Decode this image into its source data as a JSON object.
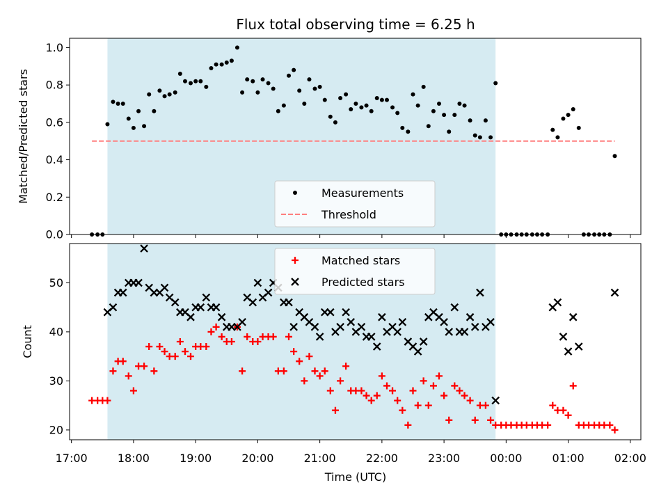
{
  "chart_data": {
    "title": "Flux total observing time = 6.25 h",
    "xlabel": "Time (UTC)",
    "x_tick_labels": [
      "17:00",
      "18:00",
      "19:00",
      "20:00",
      "21:00",
      "22:00",
      "23:00",
      "00:00",
      "01:00",
      "02:00"
    ],
    "x_range_hours": [
      16.97,
      26.17
    ],
    "shaded_span_hours": [
      17.58,
      23.83
    ],
    "shade_color": "#add8e6",
    "panels": [
      {
        "type": "scatter",
        "ylabel": "Matched/Predicted stars",
        "ylim": [
          0,
          1.05
        ],
        "y_ticks": [
          "0.0",
          "0.2",
          "0.4",
          "0.6",
          "0.8",
          "1.0"
        ],
        "legend": {
          "position": "lower-center",
          "entries": [
            "Measurements",
            "Threshold"
          ]
        },
        "series": [
          {
            "name": "Measurements",
            "marker": "dot",
            "color": "#000000",
            "x": [
              17.33,
              17.42,
              17.5,
              17.58,
              17.67,
              17.75,
              17.83,
              17.92,
              18.0,
              18.08,
              18.17,
              18.25,
              18.33,
              18.42,
              18.5,
              18.58,
              18.67,
              18.75,
              18.83,
              18.92,
              19.0,
              19.08,
              19.17,
              19.25,
              19.33,
              19.42,
              19.5,
              19.58,
              19.67,
              19.75,
              19.83,
              19.92,
              20.0,
              20.08,
              20.17,
              20.25,
              20.33,
              20.42,
              20.5,
              20.58,
              20.67,
              20.75,
              20.83,
              20.92,
              21.0,
              21.08,
              21.17,
              21.25,
              21.33,
              21.42,
              21.5,
              21.58,
              21.67,
              21.75,
              21.83,
              21.92,
              22.0,
              22.08,
              22.17,
              22.25,
              22.33,
              22.42,
              22.5,
              22.58,
              22.67,
              22.75,
              22.83,
              22.92,
              23.0,
              23.08,
              23.17,
              23.25,
              23.33,
              23.42,
              23.5,
              23.58,
              23.67,
              23.75,
              23.83,
              23.92,
              24.0,
              24.08,
              24.17,
              24.25,
              24.33,
              24.42,
              24.5,
              24.58,
              24.67,
              24.75,
              24.83,
              24.92,
              25.0,
              25.08,
              25.17,
              25.25,
              25.33,
              25.42,
              25.5,
              25.58,
              25.67,
              25.75
            ],
            "y": [
              0,
              0,
              0,
              0.59,
              0.71,
              0.7,
              0.7,
              0.62,
              0.57,
              0.66,
              0.58,
              0.75,
              0.66,
              0.77,
              0.74,
              0.75,
              0.76,
              0.86,
              0.82,
              0.81,
              0.82,
              0.82,
              0.79,
              0.89,
              0.91,
              0.91,
              0.92,
              0.93,
              1.0,
              0.76,
              0.83,
              0.82,
              0.76,
              0.83,
              0.81,
              0.78,
              0.66,
              0.69,
              0.85,
              0.88,
              0.77,
              0.7,
              0.83,
              0.78,
              0.79,
              0.72,
              0.63,
              0.6,
              0.73,
              0.75,
              0.67,
              0.7,
              0.68,
              0.69,
              0.66,
              0.73,
              0.72,
              0.72,
              0.68,
              0.65,
              0.57,
              0.55,
              0.75,
              0.69,
              0.79,
              0.58,
              0.66,
              0.7,
              0.64,
              0.55,
              0.64,
              0.7,
              0.69,
              0.61,
              0.53,
              0.52,
              0.61,
              0.52,
              0.81,
              0,
              0,
              0,
              0,
              0,
              0,
              0,
              0,
              0,
              0,
              0.56,
              0.52,
              0.62,
              0.64,
              0.67,
              0.57,
              0,
              0,
              0,
              0,
              0,
              0,
              0.42
            ]
          },
          {
            "name": "Threshold",
            "marker": "dashed-line",
            "color": "#ff7f7f",
            "x": [
              17.33,
              25.75
            ],
            "y": [
              0.5,
              0.5
            ]
          }
        ]
      },
      {
        "type": "scatter",
        "ylabel": "Count",
        "ylim": [
          18,
          58
        ],
        "y_ticks": [
          "20",
          "30",
          "40",
          "50"
        ],
        "legend": {
          "position": "upper-center",
          "entries": [
            "Matched stars",
            "Predicted stars"
          ]
        },
        "series": [
          {
            "name": "Matched stars",
            "marker": "plus",
            "color": "#ff0000",
            "x": [
              17.33,
              17.42,
              17.5,
              17.58,
              17.67,
              17.75,
              17.83,
              17.92,
              18.0,
              18.08,
              18.17,
              18.25,
              18.33,
              18.42,
              18.5,
              18.58,
              18.67,
              18.75,
              18.83,
              18.92,
              19.0,
              19.08,
              19.17,
              19.25,
              19.33,
              19.42,
              19.5,
              19.58,
              19.67,
              19.75,
              19.83,
              19.92,
              20.0,
              20.08,
              20.17,
              20.25,
              20.33,
              20.42,
              20.5,
              20.58,
              20.67,
              20.75,
              20.83,
              20.92,
              21.0,
              21.08,
              21.17,
              21.25,
              21.33,
              21.42,
              21.5,
              21.58,
              21.67,
              21.75,
              21.83,
              21.92,
              22.0,
              22.08,
              22.17,
              22.25,
              22.33,
              22.42,
              22.5,
              22.58,
              22.67,
              22.75,
              22.83,
              22.92,
              23.0,
              23.08,
              23.17,
              23.25,
              23.33,
              23.42,
              23.5,
              23.58,
              23.67,
              23.75,
              23.83,
              23.92,
              24.0,
              24.08,
              24.17,
              24.25,
              24.33,
              24.42,
              24.5,
              24.58,
              24.67,
              24.75,
              24.83,
              24.92,
              25.0,
              25.08,
              25.17,
              25.25,
              25.33,
              25.42,
              25.5,
              25.58,
              25.67,
              25.75
            ],
            "y": [
              26,
              26,
              26,
              26,
              32,
              34,
              34,
              31,
              28,
              33,
              33,
              37,
              32,
              37,
              36,
              35,
              35,
              38,
              36,
              35,
              37,
              37,
              37,
              40,
              41,
              39,
              38,
              38,
              41,
              32,
              39,
              38,
              38,
              39,
              39,
              39,
              32,
              32,
              39,
              36,
              34,
              30,
              35,
              32,
              31,
              32,
              28,
              24,
              30,
              33,
              28,
              28,
              28,
              27,
              26,
              27,
              31,
              29,
              28,
              26,
              24,
              21,
              28,
              25,
              30,
              25,
              29,
              31,
              27,
              22,
              29,
              28,
              27,
              26,
              22,
              25,
              25,
              22,
              21,
              21,
              21,
              21,
              21,
              21,
              21,
              21,
              21,
              21,
              21,
              25,
              24,
              24,
              23,
              29,
              21,
              21,
              21,
              21,
              21,
              21,
              21,
              20
            ]
          },
          {
            "name": "Predicted stars",
            "marker": "x",
            "color": "#000000",
            "x": [
              17.58,
              17.67,
              17.75,
              17.83,
              17.92,
              18.0,
              18.08,
              18.17,
              18.25,
              18.33,
              18.42,
              18.5,
              18.58,
              18.67,
              18.75,
              18.83,
              18.92,
              19.0,
              19.08,
              19.17,
              19.25,
              19.33,
              19.42,
              19.5,
              19.58,
              19.67,
              19.75,
              19.83,
              19.92,
              20.0,
              20.08,
              20.17,
              20.25,
              20.33,
              20.42,
              20.5,
              20.58,
              20.67,
              20.75,
              20.83,
              20.92,
              21.0,
              21.08,
              21.17,
              21.25,
              21.33,
              21.42,
              21.5,
              21.58,
              21.67,
              21.75,
              21.83,
              21.92,
              22.0,
              22.08,
              22.17,
              22.25,
              22.33,
              22.42,
              22.5,
              22.58,
              22.67,
              22.75,
              22.83,
              22.92,
              23.0,
              23.08,
              23.17,
              23.25,
              23.33,
              23.42,
              23.5,
              23.58,
              23.67,
              23.75,
              23.83,
              24.75,
              24.83,
              24.92,
              25.0,
              25.08,
              25.17,
              25.75
            ],
            "y": [
              44,
              45,
              48,
              48,
              50,
              50,
              50,
              57,
              49,
              48,
              48,
              49,
              47,
              46,
              44,
              44,
              43,
              45,
              45,
              47,
              45,
              45,
              43,
              41,
              41,
              41,
              42,
              47,
              46,
              50,
              47,
              48,
              50,
              49,
              46,
              46,
              41,
              44,
              43,
              42,
              41,
              39,
              44,
              44,
              40,
              41,
              44,
              42,
              40,
              41,
              39,
              39,
              37,
              43,
              40,
              41,
              40,
              42,
              38,
              37,
              36,
              38,
              43,
              44,
              43,
              42,
              40,
              45,
              40,
              40,
              43,
              41,
              48,
              41,
              42,
              26,
              45,
              46,
              39,
              36,
              43,
              37,
              48
            ]
          }
        ]
      }
    ]
  }
}
